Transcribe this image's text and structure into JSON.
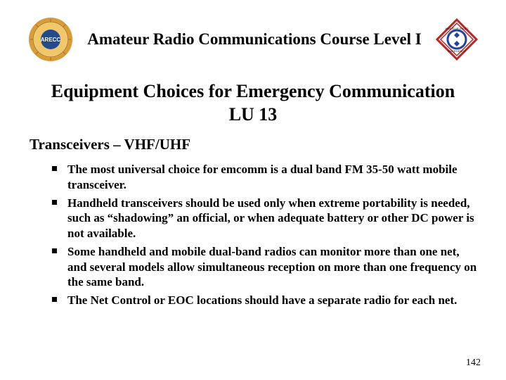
{
  "header": {
    "title": "Amateur Radio Communications Course Level I"
  },
  "main": {
    "title": "Equipment Choices for Emergency Communication\nLU 13",
    "subhead": "Transceivers – VHF/UHF",
    "bullets": [
      "The most universal choice for emcomm is a dual band FM 35-50 watt mobile transceiver.",
      "Handheld transceivers should be used only when extreme portability is needed, such as “shadowing” an official, or when adequate battery or other DC power is not available.",
      "Some handheld and mobile dual-band radios can monitor more than one net, and several models allow simultaneous reception on more than one frequency on the same band.",
      "The Net Control or EOC locations should have a separate radio for each net."
    ]
  },
  "pagenum": "142",
  "logos": {
    "left": {
      "name": "arecc-badge-icon",
      "colors": {
        "ring": "#d99a38",
        "inner": "#f0c76b",
        "center": "#234a8a",
        "text": "#ffffff"
      }
    },
    "right": {
      "name": "ares-diamond-icon",
      "colors": {
        "outer": "#ffffff",
        "border": "#b02828",
        "ring": "#26439b",
        "text": "#222222"
      }
    }
  }
}
